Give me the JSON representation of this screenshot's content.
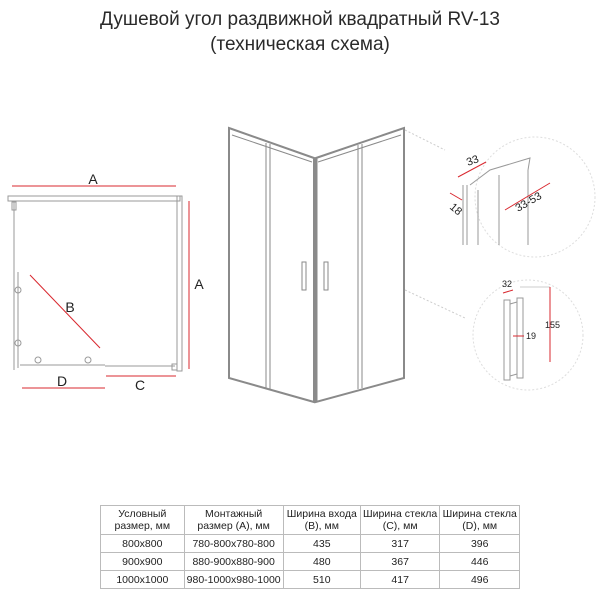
{
  "title": {
    "line1": "Душевой угол раздвижной квадратный RV-13",
    "line2": "(техническая схема)"
  },
  "plan": {
    "label_a_top": "A",
    "label_a_side": "A",
    "label_b": "B",
    "label_c": "C",
    "label_d": "D"
  },
  "profile_detail": {
    "dim_width": "33",
    "dim_depth": "18",
    "dim_adjust": "33-53"
  },
  "handle_detail": {
    "dim_width": "32",
    "dim_height": "155",
    "dim_inner": "19"
  },
  "colors": {
    "dimension": "#d9282f",
    "line": "#999999"
  },
  "table": {
    "headers": [
      "Условный размер, мм",
      "Монтажный размер (A), мм",
      "Ширина входа (B), мм",
      "Ширина стекла (C), мм",
      "Ширина стекла (D), мм"
    ],
    "rows": [
      [
        "800x800",
        "780-800x780-800",
        "435",
        "317",
        "396"
      ],
      [
        "900x900",
        "880-900x880-900",
        "480",
        "367",
        "446"
      ],
      [
        "1000x1000",
        "980-1000x980-1000",
        "510",
        "417",
        "496"
      ]
    ]
  }
}
